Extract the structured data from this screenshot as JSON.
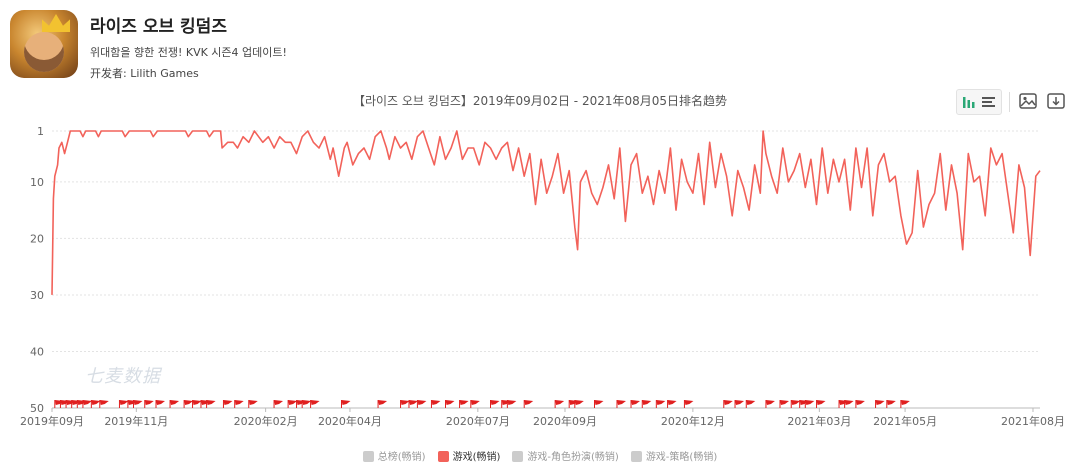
{
  "app": {
    "title": "라이즈 오브 킹덤즈",
    "subtitle": "위대함을 향한 전쟁! KVK 시즌4 업데이트!",
    "developer": "开发者: Lilith Games"
  },
  "watermark": "七麦数据",
  "toolbar": {
    "icons": [
      "bar-chart-icon",
      "list-icon",
      "image-icon",
      "download-icon"
    ]
  },
  "chart_data": {
    "type": "line",
    "title": "【라이즈 오브 킹덤즈】2019年09月02日 - 2021年08月05日排名趋势",
    "y_inverted": true,
    "ylim": [
      1,
      50
    ],
    "y_ticks": [
      1,
      10,
      20,
      30,
      40,
      50
    ],
    "x_range_days": [
      0,
      703
    ],
    "x_ticks": [
      {
        "label": "2019年09月",
        "day": 0
      },
      {
        "label": "2019年11月",
        "day": 60
      },
      {
        "label": "2020年02月",
        "day": 152
      },
      {
        "label": "2020年04月",
        "day": 212
      },
      {
        "label": "2020年07月",
        "day": 303
      },
      {
        "label": "2020年09月",
        "day": 365
      },
      {
        "label": "2020年12月",
        "day": 456
      },
      {
        "label": "2021年03月",
        "day": 546
      },
      {
        "label": "2021年05月",
        "day": 607
      },
      {
        "label": "2021年08月",
        "day": 698
      }
    ],
    "grid": true,
    "legend_position": "bottom",
    "series": [
      {
        "name": "总榜(畅销)",
        "color": "#cccccc",
        "active": false
      },
      {
        "name": "游戏(畅销)",
        "color": "#f2625a",
        "active": true,
        "points": [
          [
            0,
            30
          ],
          [
            1,
            13
          ],
          [
            2,
            9
          ],
          [
            4,
            7
          ],
          [
            5,
            4
          ],
          [
            7,
            3
          ],
          [
            9,
            5
          ],
          [
            11,
            3
          ],
          [
            13,
            1
          ],
          [
            20,
            1
          ],
          [
            22,
            2
          ],
          [
            24,
            1
          ],
          [
            31,
            1
          ],
          [
            33,
            2
          ],
          [
            35,
            1
          ],
          [
            50,
            1
          ],
          [
            52,
            2
          ],
          [
            55,
            1
          ],
          [
            70,
            1
          ],
          [
            72,
            2
          ],
          [
            75,
            1
          ],
          [
            95,
            1
          ],
          [
            97,
            2
          ],
          [
            100,
            1
          ],
          [
            110,
            1
          ],
          [
            112,
            2
          ],
          [
            115,
            1
          ],
          [
            120,
            1
          ],
          [
            121,
            4
          ],
          [
            125,
            3
          ],
          [
            129,
            3
          ],
          [
            132,
            4
          ],
          [
            136,
            2
          ],
          [
            140,
            3
          ],
          [
            144,
            1
          ],
          [
            150,
            3
          ],
          [
            154,
            2
          ],
          [
            158,
            4
          ],
          [
            162,
            2
          ],
          [
            166,
            3
          ],
          [
            170,
            3
          ],
          [
            174,
            5
          ],
          [
            178,
            2
          ],
          [
            182,
            1
          ],
          [
            186,
            3
          ],
          [
            190,
            4
          ],
          [
            194,
            2
          ],
          [
            198,
            6
          ],
          [
            200,
            4
          ],
          [
            204,
            9
          ],
          [
            208,
            4
          ],
          [
            210,
            3
          ],
          [
            214,
            7
          ],
          [
            218,
            5
          ],
          [
            222,
            4
          ],
          [
            226,
            6
          ],
          [
            230,
            2
          ],
          [
            234,
            1
          ],
          [
            238,
            4
          ],
          [
            240,
            6
          ],
          [
            244,
            2
          ],
          [
            248,
            4
          ],
          [
            252,
            3
          ],
          [
            256,
            6
          ],
          [
            260,
            2
          ],
          [
            264,
            1
          ],
          [
            268,
            4
          ],
          [
            272,
            7
          ],
          [
            276,
            2
          ],
          [
            280,
            6
          ],
          [
            284,
            4
          ],
          [
            288,
            1
          ],
          [
            292,
            6
          ],
          [
            296,
            4
          ],
          [
            300,
            4
          ],
          [
            304,
            7
          ],
          [
            308,
            3
          ],
          [
            312,
            4
          ],
          [
            316,
            6
          ],
          [
            320,
            4
          ],
          [
            324,
            3
          ],
          [
            328,
            8
          ],
          [
            332,
            4
          ],
          [
            336,
            9
          ],
          [
            340,
            5
          ],
          [
            344,
            14
          ],
          [
            348,
            6
          ],
          [
            352,
            12
          ],
          [
            356,
            9
          ],
          [
            360,
            5
          ],
          [
            364,
            12
          ],
          [
            368,
            8
          ],
          [
            372,
            18
          ],
          [
            374,
            22
          ],
          [
            376,
            10
          ],
          [
            380,
            8
          ],
          [
            384,
            12
          ],
          [
            388,
            14
          ],
          [
            392,
            11
          ],
          [
            396,
            7
          ],
          [
            400,
            13
          ],
          [
            404,
            4
          ],
          [
            408,
            17
          ],
          [
            412,
            7
          ],
          [
            416,
            5
          ],
          [
            420,
            12
          ],
          [
            424,
            9
          ],
          [
            428,
            14
          ],
          [
            432,
            8
          ],
          [
            436,
            12
          ],
          [
            440,
            4
          ],
          [
            444,
            15
          ],
          [
            448,
            6
          ],
          [
            452,
            10
          ],
          [
            456,
            12
          ],
          [
            460,
            5
          ],
          [
            464,
            14
          ],
          [
            468,
            3
          ],
          [
            472,
            11
          ],
          [
            476,
            5
          ],
          [
            480,
            9
          ],
          [
            484,
            16
          ],
          [
            488,
            8
          ],
          [
            492,
            11
          ],
          [
            496,
            15
          ],
          [
            500,
            7
          ],
          [
            504,
            12
          ],
          [
            506,
            1
          ],
          [
            508,
            5
          ],
          [
            512,
            9
          ],
          [
            516,
            12
          ],
          [
            520,
            4
          ],
          [
            524,
            10
          ],
          [
            528,
            8
          ],
          [
            532,
            5
          ],
          [
            536,
            11
          ],
          [
            540,
            6
          ],
          [
            544,
            14
          ],
          [
            548,
            4
          ],
          [
            552,
            12
          ],
          [
            556,
            6
          ],
          [
            560,
            10
          ],
          [
            564,
            6
          ],
          [
            568,
            15
          ],
          [
            572,
            4
          ],
          [
            576,
            11
          ],
          [
            580,
            4
          ],
          [
            584,
            16
          ],
          [
            588,
            7
          ],
          [
            592,
            5
          ],
          [
            596,
            10
          ],
          [
            600,
            9
          ],
          [
            604,
            16
          ],
          [
            608,
            21
          ],
          [
            612,
            19
          ],
          [
            616,
            8
          ],
          [
            620,
            18
          ],
          [
            624,
            14
          ],
          [
            628,
            12
          ],
          [
            632,
            5
          ],
          [
            636,
            15
          ],
          [
            640,
            7
          ],
          [
            644,
            12
          ],
          [
            648,
            22
          ],
          [
            652,
            5
          ],
          [
            656,
            10
          ],
          [
            660,
            9
          ],
          [
            664,
            16
          ],
          [
            668,
            4
          ],
          [
            672,
            7
          ],
          [
            676,
            5
          ],
          [
            680,
            12
          ],
          [
            684,
            19
          ],
          [
            688,
            7
          ],
          [
            692,
            11
          ],
          [
            696,
            23
          ],
          [
            700,
            9
          ],
          [
            703,
            8
          ]
        ]
      },
      {
        "name": "游戏-角色扮演(畅销)",
        "color": "#cccccc",
        "active": false
      },
      {
        "name": "游戏-策略(畅销)",
        "color": "#cccccc",
        "active": false
      }
    ],
    "event_markers_days": [
      2,
      6,
      10,
      14,
      18,
      22,
      28,
      34,
      48,
      54,
      58,
      66,
      74,
      84,
      94,
      100,
      106,
      110,
      122,
      130,
      140,
      158,
      168,
      174,
      178,
      184,
      206,
      232,
      248,
      254,
      260,
      270,
      280,
      290,
      298,
      312,
      320,
      324,
      336,
      358,
      368,
      372,
      386,
      402,
      412,
      420,
      430,
      438,
      450,
      478,
      486,
      494,
      508,
      518,
      526,
      532,
      536,
      544,
      560,
      564,
      572,
      586,
      594,
      604
    ]
  }
}
